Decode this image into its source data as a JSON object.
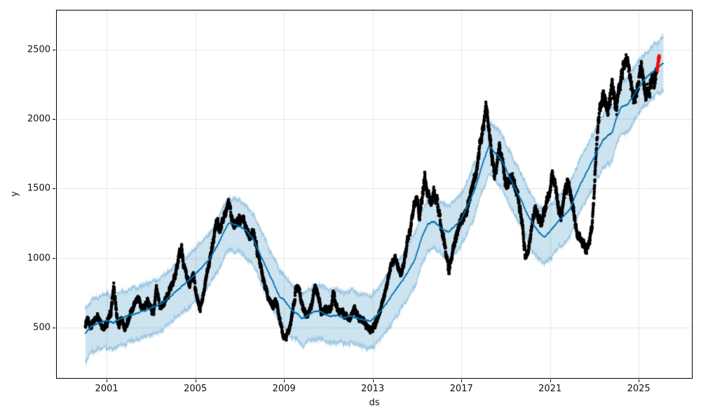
{
  "chart_data": {
    "type": "scatter",
    "title": "",
    "xlabel": "ds",
    "ylabel": "y",
    "xlim": [
      1998.72,
      2027.43
    ],
    "ylim": [
      129,
      2790
    ],
    "xticks": [
      2001,
      2005,
      2009,
      2013,
      2017,
      2021,
      2025
    ],
    "yticks": [
      500,
      1000,
      1500,
      2000,
      2500
    ],
    "grid": true,
    "legend": "none",
    "colors": {
      "history_dots": "#000000",
      "forecast_line": "#0072B2",
      "uncertainty_band": "rgba(0,114,178,0.2)",
      "band_edge": "rgba(0,114,178,0.3)",
      "highlight_dots": "#f40b0b",
      "grid": "#e5e5e5",
      "spine": "#000000"
    },
    "series": [
      {
        "name": "history",
        "style": "black-dots",
        "points": [
          [
            2000.04,
            510
          ],
          [
            2000.15,
            552
          ],
          [
            2000.3,
            498
          ],
          [
            2000.45,
            545
          ],
          [
            2000.6,
            572
          ],
          [
            2000.75,
            528
          ],
          [
            2000.9,
            505
          ],
          [
            2001.05,
            558
          ],
          [
            2001.2,
            600
          ],
          [
            2001.32,
            790
          ],
          [
            2001.45,
            598
          ],
          [
            2001.55,
            508
          ],
          [
            2001.68,
            560
          ],
          [
            2001.8,
            478
          ],
          [
            2001.95,
            540
          ],
          [
            2002.1,
            598
          ],
          [
            2002.25,
            668
          ],
          [
            2002.4,
            698
          ],
          [
            2002.55,
            650
          ],
          [
            2002.7,
            638
          ],
          [
            2002.85,
            678
          ],
          [
            2003.0,
            638
          ],
          [
            2003.12,
            598
          ],
          [
            2003.25,
            792
          ],
          [
            2003.38,
            650
          ],
          [
            2003.5,
            668
          ],
          [
            2003.65,
            700
          ],
          [
            2003.8,
            748
          ],
          [
            2003.95,
            812
          ],
          [
            2004.1,
            870
          ],
          [
            2004.25,
            1005
          ],
          [
            2004.38,
            1060
          ],
          [
            2004.5,
            940
          ],
          [
            2004.62,
            858
          ],
          [
            2004.75,
            820
          ],
          [
            2004.9,
            880
          ],
          [
            2005.05,
            742
          ],
          [
            2005.2,
            628
          ],
          [
            2005.32,
            700
          ],
          [
            2005.45,
            820
          ],
          [
            2005.6,
            940
          ],
          [
            2005.75,
            1080
          ],
          [
            2005.88,
            1190
          ],
          [
            2006.0,
            1262
          ],
          [
            2006.12,
            1205
          ],
          [
            2006.25,
            1288
          ],
          [
            2006.38,
            1330
          ],
          [
            2006.5,
            1415
          ],
          [
            2006.62,
            1300
          ],
          [
            2006.75,
            1208
          ],
          [
            2006.88,
            1282
          ],
          [
            2007.0,
            1252
          ],
          [
            2007.15,
            1300
          ],
          [
            2007.3,
            1218
          ],
          [
            2007.45,
            1152
          ],
          [
            2007.6,
            1200
          ],
          [
            2007.75,
            1095
          ],
          [
            2007.9,
            952
          ],
          [
            2008.05,
            848
          ],
          [
            2008.2,
            782
          ],
          [
            2008.35,
            700
          ],
          [
            2008.5,
            648
          ],
          [
            2008.62,
            700
          ],
          [
            2008.75,
            618
          ],
          [
            2008.88,
            498
          ],
          [
            2008.98,
            418
          ],
          [
            2009.12,
            442
          ],
          [
            2009.25,
            500
          ],
          [
            2009.4,
            622
          ],
          [
            2009.52,
            748
          ],
          [
            2009.62,
            818
          ],
          [
            2009.72,
            748
          ],
          [
            2009.85,
            648
          ],
          [
            2009.98,
            600
          ],
          [
            2010.12,
            622
          ],
          [
            2010.25,
            655
          ],
          [
            2010.4,
            795
          ],
          [
            2010.55,
            718
          ],
          [
            2010.7,
            600
          ],
          [
            2010.85,
            632
          ],
          [
            2011.0,
            618
          ],
          [
            2011.12,
            622
          ],
          [
            2011.22,
            778
          ],
          [
            2011.35,
            648
          ],
          [
            2011.48,
            598
          ],
          [
            2011.6,
            622
          ],
          [
            2011.75,
            578
          ],
          [
            2011.9,
            558
          ],
          [
            2012.05,
            600
          ],
          [
            2012.2,
            622
          ],
          [
            2012.35,
            580
          ],
          [
            2012.5,
            558
          ],
          [
            2012.65,
            538
          ],
          [
            2012.8,
            498
          ],
          [
            2012.95,
            478
          ],
          [
            2013.1,
            522
          ],
          [
            2013.25,
            580
          ],
          [
            2013.4,
            650
          ],
          [
            2013.55,
            740
          ],
          [
            2013.7,
            850
          ],
          [
            2013.85,
            948
          ],
          [
            2014.0,
            1000
          ],
          [
            2014.12,
            948
          ],
          [
            2014.25,
            882
          ],
          [
            2014.38,
            950
          ],
          [
            2014.5,
            1048
          ],
          [
            2014.62,
            1148
          ],
          [
            2014.75,
            1252
          ],
          [
            2014.88,
            1380
          ],
          [
            2015.0,
            1408
          ],
          [
            2015.12,
            1302
          ],
          [
            2015.25,
            1455
          ],
          [
            2015.35,
            1582
          ],
          [
            2015.5,
            1452
          ],
          [
            2015.62,
            1402
          ],
          [
            2015.75,
            1478
          ],
          [
            2015.9,
            1400
          ],
          [
            2016.02,
            1298
          ],
          [
            2016.14,
            1198
          ],
          [
            2016.25,
            1095
          ],
          [
            2016.35,
            998
          ],
          [
            2016.45,
            905
          ],
          [
            2016.55,
            1002
          ],
          [
            2016.68,
            1098
          ],
          [
            2016.82,
            1198
          ],
          [
            2016.95,
            1248
          ],
          [
            2017.1,
            1298
          ],
          [
            2017.25,
            1348
          ],
          [
            2017.4,
            1420
          ],
          [
            2017.55,
            1548
          ],
          [
            2017.7,
            1650
          ],
          [
            2017.85,
            1800
          ],
          [
            2018.0,
            1952
          ],
          [
            2018.1,
            2098
          ],
          [
            2018.2,
            1998
          ],
          [
            2018.3,
            1848
          ],
          [
            2018.4,
            1700
          ],
          [
            2018.5,
            1598
          ],
          [
            2018.62,
            1702
          ],
          [
            2018.72,
            1798
          ],
          [
            2018.82,
            1700
          ],
          [
            2018.92,
            1598
          ],
          [
            2019.02,
            1502
          ],
          [
            2019.15,
            1552
          ],
          [
            2019.3,
            1598
          ],
          [
            2019.45,
            1500
          ],
          [
            2019.6,
            1400
          ],
          [
            2019.7,
            1298
          ],
          [
            2019.8,
            1148
          ],
          [
            2019.9,
            1000
          ],
          [
            2020.02,
            1052
          ],
          [
            2020.15,
            1202
          ],
          [
            2020.3,
            1348
          ],
          [
            2020.45,
            1298
          ],
          [
            2020.6,
            1252
          ],
          [
            2020.7,
            1302
          ],
          [
            2020.85,
            1400
          ],
          [
            2021.0,
            1498
          ],
          [
            2021.1,
            1598
          ],
          [
            2021.2,
            1548
          ],
          [
            2021.3,
            1448
          ],
          [
            2021.4,
            1352
          ],
          [
            2021.5,
            1302
          ],
          [
            2021.6,
            1400
          ],
          [
            2021.7,
            1498
          ],
          [
            2021.8,
            1548
          ],
          [
            2021.9,
            1498
          ],
          [
            2022.0,
            1400
          ],
          [
            2022.1,
            1302
          ],
          [
            2022.2,
            1202
          ],
          [
            2022.35,
            1148
          ],
          [
            2022.5,
            1098
          ],
          [
            2022.62,
            1048
          ],
          [
            2022.75,
            1098
          ],
          [
            2022.9,
            1248
          ],
          [
            2023.0,
            1498
          ],
          [
            2023.1,
            1798
          ],
          [
            2023.2,
            1998
          ],
          [
            2023.3,
            2098
          ],
          [
            2023.4,
            2198
          ],
          [
            2023.5,
            2148
          ],
          [
            2023.6,
            2048
          ],
          [
            2023.7,
            2148
          ],
          [
            2023.8,
            2248
          ],
          [
            2023.9,
            2148
          ],
          [
            2024.0,
            2098
          ],
          [
            2024.1,
            2198
          ],
          [
            2024.2,
            2298
          ],
          [
            2024.32,
            2398
          ],
          [
            2024.45,
            2428
          ],
          [
            2024.6,
            2348
          ],
          [
            2024.7,
            2198
          ],
          [
            2024.8,
            2098
          ],
          [
            2024.9,
            2198
          ],
          [
            2025.0,
            2298
          ],
          [
            2025.1,
            2378
          ],
          [
            2025.2,
            2298
          ],
          [
            2025.3,
            2198
          ],
          [
            2025.4,
            2178
          ],
          [
            2025.5,
            2248
          ],
          [
            2025.6,
            2318
          ],
          [
            2025.7,
            2278
          ],
          [
            2025.82,
            2348
          ]
        ]
      },
      {
        "name": "forecast_yhat",
        "style": "blue-line",
        "points": [
          [
            2000.04,
            455
          ],
          [
            2000.3,
            505
          ],
          [
            2000.6,
            528
          ],
          [
            2001.0,
            550
          ],
          [
            2001.3,
            532
          ],
          [
            2001.6,
            562
          ],
          [
            2002.0,
            585
          ],
          [
            2002.4,
            602
          ],
          [
            2002.8,
            628
          ],
          [
            2003.2,
            655
          ],
          [
            2003.6,
            685
          ],
          [
            2004.0,
            742
          ],
          [
            2004.4,
            800
          ],
          [
            2004.8,
            852
          ],
          [
            2005.2,
            915
          ],
          [
            2005.6,
            985
          ],
          [
            2006.0,
            1090
          ],
          [
            2006.3,
            1190
          ],
          [
            2006.5,
            1253
          ],
          [
            2006.8,
            1238
          ],
          [
            2007.0,
            1228
          ],
          [
            2007.3,
            1198
          ],
          [
            2007.6,
            1140
          ],
          [
            2008.0,
            1000
          ],
          [
            2008.4,
            862
          ],
          [
            2008.8,
            722
          ],
          [
            2009.0,
            700
          ],
          [
            2009.3,
            630
          ],
          [
            2009.6,
            600
          ],
          [
            2009.8,
            560
          ],
          [
            2010.0,
            575
          ],
          [
            2010.3,
            608
          ],
          [
            2010.6,
            618
          ],
          [
            2010.9,
            592
          ],
          [
            2011.1,
            578
          ],
          [
            2011.4,
            588
          ],
          [
            2011.7,
            566
          ],
          [
            2012.0,
            580
          ],
          [
            2012.3,
            568
          ],
          [
            2012.6,
            552
          ],
          [
            2012.9,
            545
          ],
          [
            2013.1,
            572
          ],
          [
            2013.4,
            625
          ],
          [
            2013.7,
            690
          ],
          [
            2014.0,
            760
          ],
          [
            2014.3,
            828
          ],
          [
            2014.6,
            900
          ],
          [
            2014.9,
            990
          ],
          [
            2015.2,
            1140
          ],
          [
            2015.5,
            1248
          ],
          [
            2015.8,
            1262
          ],
          [
            2016.1,
            1210
          ],
          [
            2016.4,
            1185
          ],
          [
            2016.7,
            1232
          ],
          [
            2017.0,
            1280
          ],
          [
            2017.3,
            1385
          ],
          [
            2017.6,
            1490
          ],
          [
            2018.0,
            1700
          ],
          [
            2018.25,
            1805
          ],
          [
            2018.5,
            1762
          ],
          [
            2018.8,
            1715
          ],
          [
            2019.1,
            1608
          ],
          [
            2019.4,
            1510
          ],
          [
            2019.7,
            1418
          ],
          [
            2020.0,
            1310
          ],
          [
            2020.3,
            1228
          ],
          [
            2020.55,
            1180
          ],
          [
            2020.75,
            1148
          ],
          [
            2021.0,
            1192
          ],
          [
            2021.3,
            1252
          ],
          [
            2021.6,
            1298
          ],
          [
            2021.9,
            1352
          ],
          [
            2022.2,
            1470
          ],
          [
            2022.5,
            1568
          ],
          [
            2022.8,
            1668
          ],
          [
            2023.1,
            1760
          ],
          [
            2023.4,
            1852
          ],
          [
            2023.6,
            1880
          ],
          [
            2023.8,
            1902
          ],
          [
            2024.0,
            2010
          ],
          [
            2024.2,
            2085
          ],
          [
            2024.5,
            2105
          ],
          [
            2024.8,
            2178
          ],
          [
            2025.0,
            2232
          ],
          [
            2025.3,
            2292
          ],
          [
            2025.6,
            2340
          ],
          [
            2025.9,
            2382
          ],
          [
            2026.12,
            2405
          ]
        ]
      },
      {
        "name": "uncertainty_band",
        "style": "blue-band",
        "halfwidth_lower": 195,
        "halfwidth_upper": 188,
        "t_start": 2000.04,
        "t_end": 2026.12
      },
      {
        "name": "recent_highlight",
        "style": "red-dots",
        "points": [
          [
            2025.84,
            2352
          ],
          [
            2025.85,
            2375
          ],
          [
            2025.86,
            2398
          ],
          [
            2025.87,
            2382
          ],
          [
            2025.88,
            2412
          ],
          [
            2025.89,
            2438
          ],
          [
            2025.9,
            2425
          ],
          [
            2025.91,
            2448
          ],
          [
            2025.92,
            2458
          ],
          [
            2025.93,
            2445
          ]
        ]
      }
    ]
  }
}
